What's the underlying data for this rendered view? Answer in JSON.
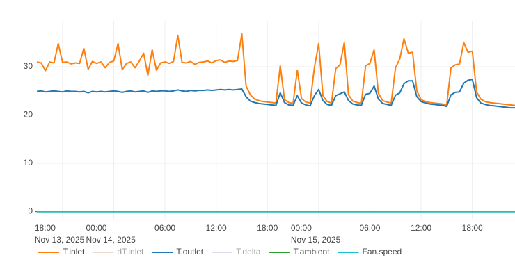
{
  "chart_data": {
    "type": "line",
    "x": [
      "2025-11-13 15:00",
      "2025-11-13 15:30",
      "2025-11-13 16:00",
      "2025-11-13 16:30",
      "2025-11-13 17:00",
      "2025-11-13 17:30",
      "2025-11-13 18:00",
      "2025-11-13 18:30",
      "2025-11-13 19:00",
      "2025-11-13 19:30",
      "2025-11-13 20:00",
      "2025-11-13 20:30",
      "2025-11-13 21:00",
      "2025-11-13 21:30",
      "2025-11-13 22:00",
      "2025-11-13 22:30",
      "2025-11-13 23:00",
      "2025-11-13 23:30",
      "2025-11-14 00:00",
      "2025-11-14 00:30",
      "2025-11-14 01:00",
      "2025-11-14 01:30",
      "2025-11-14 02:00",
      "2025-11-14 02:30",
      "2025-11-14 03:00",
      "2025-11-14 03:30",
      "2025-11-14 04:00",
      "2025-11-14 04:30",
      "2025-11-14 05:00",
      "2025-11-14 05:30",
      "2025-11-14 06:00",
      "2025-11-14 06:30",
      "2025-11-14 07:00",
      "2025-11-14 07:30",
      "2025-11-14 08:00",
      "2025-11-14 08:30",
      "2025-11-14 09:00",
      "2025-11-14 09:30",
      "2025-11-14 10:00",
      "2025-11-14 10:30",
      "2025-11-14 11:00",
      "2025-11-14 11:30",
      "2025-11-14 12:00",
      "2025-11-14 12:30",
      "2025-11-14 13:00",
      "2025-11-14 13:30",
      "2025-11-14 14:00",
      "2025-11-14 14:30",
      "2025-11-14 15:00",
      "2025-11-14 15:30",
      "2025-11-14 16:00",
      "2025-11-14 16:30",
      "2025-11-14 17:00",
      "2025-11-14 17:30",
      "2025-11-14 18:00",
      "2025-11-14 18:30",
      "2025-11-14 19:00",
      "2025-11-14 19:30",
      "2025-11-14 20:00",
      "2025-11-14 20:30",
      "2025-11-14 21:00",
      "2025-11-14 21:30",
      "2025-11-14 22:00",
      "2025-11-14 22:30",
      "2025-11-14 23:00",
      "2025-11-14 23:30",
      "2025-11-15 00:00",
      "2025-11-15 00:30",
      "2025-11-15 01:00",
      "2025-11-15 01:30",
      "2025-11-15 02:00",
      "2025-11-15 02:30",
      "2025-11-15 03:00",
      "2025-11-15 03:30",
      "2025-11-15 04:00",
      "2025-11-15 04:30",
      "2025-11-15 05:00",
      "2025-11-15 05:30",
      "2025-11-15 06:00",
      "2025-11-15 06:30",
      "2025-11-15 07:00",
      "2025-11-15 07:30",
      "2025-11-15 08:00",
      "2025-11-15 08:30",
      "2025-11-15 09:00",
      "2025-11-15 09:30",
      "2025-11-15 10:00",
      "2025-11-15 10:30",
      "2025-11-15 11:00",
      "2025-11-15 11:30",
      "2025-11-15 12:00",
      "2025-11-15 12:30",
      "2025-11-15 13:00",
      "2025-11-15 13:30",
      "2025-11-15 14:00",
      "2025-11-15 14:30",
      "2025-11-15 15:00",
      "2025-11-15 15:30",
      "2025-11-15 16:00",
      "2025-11-15 16:30",
      "2025-11-15 17:00",
      "2025-11-15 17:30",
      "2025-11-15 18:00",
      "2025-11-15 18:30",
      "2025-11-15 19:00",
      "2025-11-15 19:30",
      "2025-11-15 20:00",
      "2025-11-15 20:30",
      "2025-11-15 21:00",
      "2025-11-15 21:30",
      "2025-11-15 22:00",
      "2025-11-15 22:30",
      "2025-11-15 23:00"
    ],
    "series": [
      {
        "name": "T.inlet",
        "color": "#ff7f0e",
        "visible": true,
        "values": [
          31,
          30.8,
          29.2,
          31,
          30.8,
          34.8,
          30.9,
          31,
          30.6,
          30.8,
          30.7,
          33.8,
          29.5,
          31.1,
          30.7,
          31,
          29.8,
          30.9,
          31.2,
          34.8,
          29.4,
          30.7,
          31,
          29.8,
          31.2,
          32.8,
          28.2,
          33.5,
          29.3,
          30.8,
          31,
          30.7,
          31.1,
          36.5,
          30.9,
          30.8,
          31.1,
          30.5,
          30.9,
          31,
          31.2,
          30.8,
          31.3,
          31.4,
          30.9,
          31.2,
          31.1,
          31.3,
          36.8,
          26,
          24.2,
          23.3,
          23,
          22.8,
          22.7,
          22.6,
          22.5,
          30.2,
          23.2,
          22.6,
          22.4,
          29.3,
          23.4,
          22.7,
          22.5,
          29.8,
          34.8,
          24,
          22.8,
          22.5,
          29.6,
          30.4,
          35,
          24.2,
          22.9,
          22.6,
          22.4,
          30.2,
          30.7,
          33.5,
          24.5,
          23,
          22.7,
          22.5,
          29.8,
          31.6,
          35.8,
          32.8,
          33,
          25,
          23.2,
          22.8,
          22.6,
          22.5,
          22.4,
          22.3,
          22.1,
          29.8,
          30.4,
          30.6,
          35,
          33,
          33.2,
          24.8,
          23.3,
          22.8,
          22.6,
          22.5,
          22.4,
          22.3,
          22.2,
          22.1,
          22
        ]
      },
      {
        "name": "dT.inlet",
        "color": "#e3b49b",
        "visible": false
      },
      {
        "name": "T.outlet",
        "color": "#1f77b4",
        "visible": true,
        "values": [
          24.9,
          25,
          24.8,
          24.9,
          25,
          24.9,
          24.8,
          25,
          24.9,
          24.9,
          24.8,
          24.9,
          24.6,
          24.9,
          24.8,
          24.9,
          24.8,
          24.9,
          25,
          24.9,
          24.7,
          24.9,
          25,
          24.8,
          24.9,
          25,
          24.7,
          25,
          24.9,
          25,
          25,
          24.9,
          25,
          25.2,
          25,
          24.9,
          25.1,
          25,
          25.1,
          25.1,
          25.2,
          25.1,
          25.2,
          25.3,
          25.2,
          25.3,
          25.2,
          25.3,
          25.4,
          23.8,
          22.9,
          22.6,
          22.4,
          22.3,
          22.2,
          22.1,
          22,
          24.6,
          22.6,
          22.1,
          22,
          24,
          22.5,
          22.1,
          21.9,
          24,
          25.3,
          23,
          22.2,
          22,
          24,
          24.4,
          24.8,
          23,
          22.3,
          22.1,
          22,
          24.3,
          24.5,
          26,
          23.3,
          22.4,
          22.2,
          22,
          24.1,
          24.6,
          26.5,
          27.1,
          27.1,
          23.8,
          22.8,
          22.5,
          22.3,
          22.2,
          22.1,
          22,
          21.8,
          24.2,
          24.7,
          24.8,
          26.6,
          27.2,
          27.4,
          23.6,
          22.5,
          22.2,
          22,
          21.9,
          21.8,
          21.7,
          21.6,
          21.5,
          21.5
        ]
      },
      {
        "name": "T.delta",
        "color": "#cbb6e0",
        "visible": false
      },
      {
        "name": "T.ambient",
        "color": "#2ca02c",
        "visible": true,
        "values": [
          0,
          0,
          0,
          0,
          0,
          0,
          0,
          0,
          0,
          0,
          0,
          0,
          0,
          0,
          0,
          0,
          0,
          0,
          0,
          0,
          0,
          0,
          0,
          0,
          0,
          0,
          0,
          0,
          0,
          0,
          0,
          0,
          0,
          0,
          0,
          0,
          0,
          0,
          0,
          0,
          0,
          0,
          0,
          0,
          0,
          0,
          0,
          0,
          0,
          0,
          0,
          0,
          0,
          0,
          0,
          0,
          0,
          0,
          0,
          0,
          0,
          0,
          0,
          0,
          0,
          0,
          0,
          0,
          0,
          0,
          0,
          0,
          0,
          0,
          0,
          0,
          0,
          0,
          0,
          0,
          0,
          0,
          0,
          0,
          0,
          0,
          0,
          0,
          0,
          0,
          0,
          0,
          0,
          0,
          0,
          0,
          0,
          0,
          0,
          0,
          0,
          0,
          0,
          0,
          0,
          0,
          0,
          0,
          0,
          0,
          0,
          0,
          0
        ]
      },
      {
        "name": "Fan.speed",
        "color": "#17becf",
        "visible": true,
        "values": [
          0,
          0,
          0,
          0,
          0,
          0,
          0,
          0,
          0,
          0,
          0,
          0,
          0,
          0,
          0,
          0,
          0,
          0,
          0,
          0,
          0,
          0,
          0,
          0,
          0,
          0,
          0,
          0,
          0,
          0,
          0,
          0,
          0,
          0,
          0,
          0,
          0,
          0,
          0,
          0,
          0,
          0,
          0,
          0,
          0,
          0,
          0,
          0,
          0,
          0,
          0,
          0,
          0,
          0,
          0,
          0,
          0,
          0,
          0,
          0,
          0,
          0,
          0,
          0,
          0,
          0,
          0,
          0,
          0,
          0,
          0,
          0,
          0,
          0,
          0,
          0,
          0,
          0,
          0,
          0,
          0,
          0,
          0,
          0,
          0,
          0,
          0,
          0,
          0,
          0,
          0,
          0,
          0,
          0,
          0,
          0,
          0,
          0,
          0,
          0,
          0,
          0,
          0,
          0,
          0,
          0,
          0,
          0,
          0,
          0,
          0,
          0,
          0
        ]
      }
    ],
    "xlim": [
      "2025-11-13 14:45",
      "2025-11-15 23:00"
    ],
    "xticks": [
      {
        "value": "2025-11-13 18:00",
        "label": "18:00\nNov 13, 2025"
      },
      {
        "value": "2025-11-14 00:00",
        "label": "00:00\nNov 14, 2025"
      },
      {
        "value": "2025-11-14 06:00",
        "label": "06:00"
      },
      {
        "value": "2025-11-14 12:00",
        "label": "12:00"
      },
      {
        "value": "2025-11-14 18:00",
        "label": "18:00"
      },
      {
        "value": "2025-11-15 00:00",
        "label": "00:00\nNov 15, 2025"
      },
      {
        "value": "2025-11-15 06:00",
        "label": "06:00"
      },
      {
        "value": "2025-11-15 12:00",
        "label": "12:00"
      },
      {
        "value": "2025-11-15 18:00",
        "label": "18:00"
      }
    ],
    "ylim": [
      -1.5,
      39.5
    ],
    "yticks": [
      0,
      10,
      20,
      30
    ],
    "grid": true,
    "legend": "bottom"
  }
}
